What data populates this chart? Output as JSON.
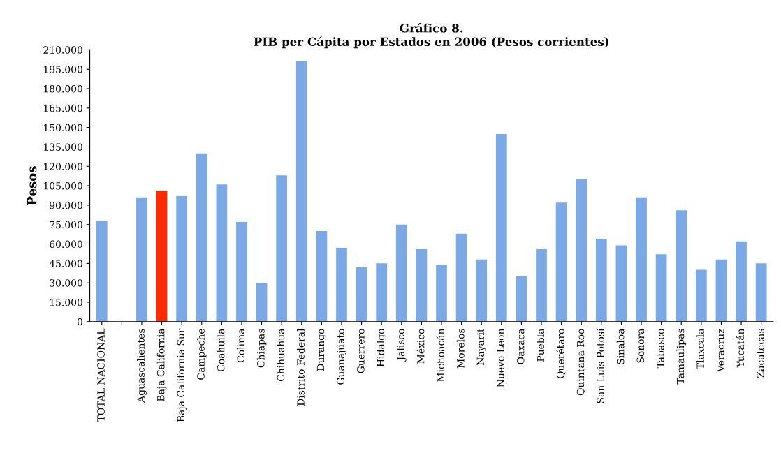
{
  "chart_data": {
    "type": "bar",
    "title": "Gráfico 8.\nPIB per Cápita por Estados en 2006 (Pesos corrientes)",
    "ylabel": "Pesos",
    "categories": [
      "TOTAL NACIONAL",
      null,
      "Aguascalientes",
      "Baja California",
      "Baja California Sur",
      "Campeche",
      "Coahuila",
      "Colima",
      "Chiapas",
      "Chihuahua",
      "Distrito Federal",
      "Durango",
      "Guanajuato",
      "Guerrero",
      "Hidalgo",
      "Jalisco",
      "México",
      "Michoacán",
      "Morelos",
      "Nayarit",
      "Nuevo Leon",
      "Oaxaca",
      "Puebla",
      "Querétaro",
      "Quintana Roo",
      "San Luis Potosí",
      "Sinaloa",
      "Sonora",
      "Tabasco",
      "Tamaulipas",
      "Tlaxcala",
      "Veracruz",
      "Yucatán",
      "Zacatecas"
    ],
    "values": [
      78000,
      null,
      96000,
      101000,
      97000,
      130000,
      106000,
      77000,
      30000,
      113000,
      201000,
      70000,
      57000,
      42000,
      45000,
      75000,
      56000,
      44000,
      68000,
      48000,
      145000,
      35000,
      56000,
      92000,
      110000,
      64000,
      59000,
      96000,
      52000,
      86000,
      40000,
      48000,
      62000,
      45000
    ],
    "colors": [
      "#7aa9e6",
      "#7aa9e6",
      "#7aa9e6",
      "#ff2a00",
      "#7aa9e6",
      "#7aa9e6",
      "#7aa9e6",
      "#7aa9e6",
      "#7aa9e6",
      "#7aa9e6",
      "#7aa9e6",
      "#7aa9e6",
      "#7aa9e6",
      "#7aa9e6",
      "#7aa9e6",
      "#7aa9e6",
      "#7aa9e6",
      "#7aa9e6",
      "#7aa9e6",
      "#7aa9e6",
      "#7aa9e6",
      "#7aa9e6",
      "#7aa9e6",
      "#7aa9e6",
      "#7aa9e6",
      "#7aa9e6",
      "#7aa9e6",
      "#7aa9e6",
      "#7aa9e6",
      "#7aa9e6",
      "#7aa9e6",
      "#7aa9e6",
      "#7aa9e6",
      "#7aa9e6"
    ],
    "ylim": [
      0,
      210000
    ],
    "yticks": [
      0,
      {
        "value": 15000,
        "label": "15.000"
      },
      {
        "value": 30000,
        "label": "30.000"
      },
      {
        "value": 45000,
        "label": "45.000"
      },
      {
        "value": 60000,
        "label": "60.000"
      },
      {
        "value": 75000,
        "label": "75.000"
      },
      {
        "value": 90000,
        "label": "90.000"
      },
      {
        "value": 105000,
        "label": "105.000"
      },
      {
        "value": 120000,
        "label": "120.000"
      },
      {
        "value": 135000,
        "label": "135.000"
      },
      {
        "value": 150000,
        "label": "150.000"
      },
      {
        "value": 165000,
        "label": "165.000"
      },
      {
        "value": 180000,
        "label": "180.000"
      },
      {
        "value": 195000,
        "label": "195.000"
      },
      {
        "value": 210000,
        "label": "210.000"
      }
    ],
    "grid": false,
    "legend": false
  }
}
